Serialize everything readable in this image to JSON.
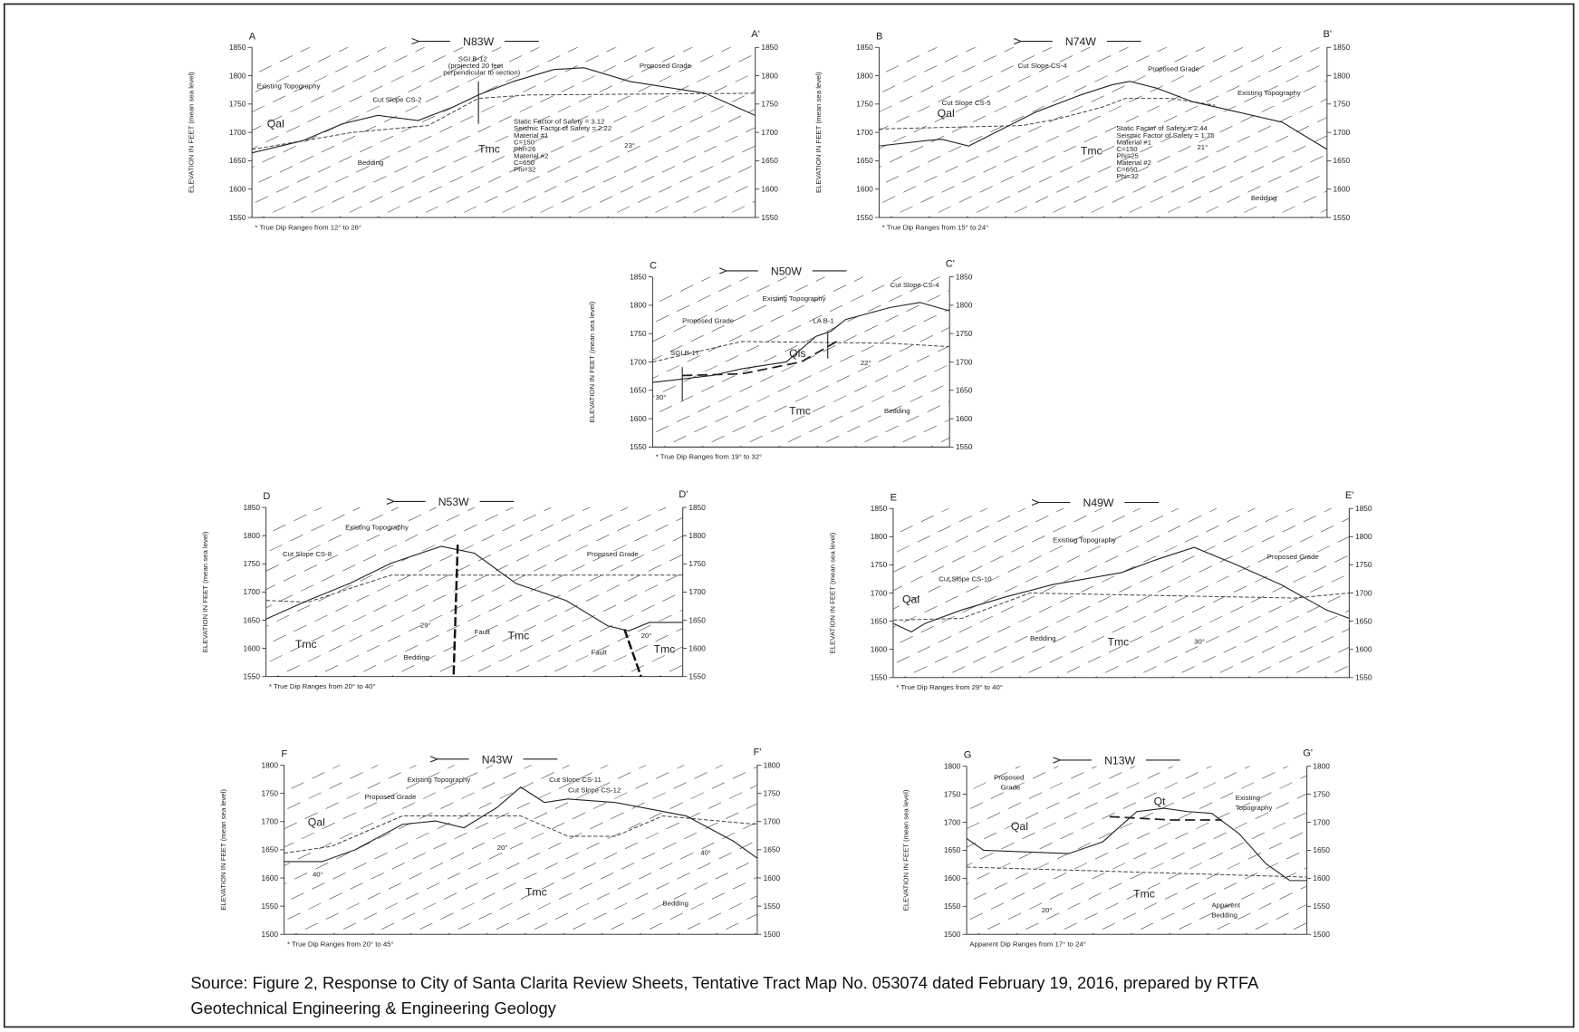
{
  "sections": [
    {
      "start": "A",
      "end": "A'",
      "direction": "N83W",
      "y_axis_label": "ELEVATION IN FEET (mean sea level)",
      "ticks": [
        1850,
        1800,
        1750,
        1700,
        1650,
        1600,
        1550
      ],
      "notes": [
        "Existing Topography",
        "Qal",
        "Cut Slope CS-2",
        "SGI B-12",
        "(projected 20 feet",
        "perpendicular to section)",
        "Proposed Grade",
        "Static Factor of Safety = 3.12",
        "Seismic Factor of Safety = 2.22",
        "Material #1",
        "C=150",
        "Phi=26",
        "Material #2",
        "C=650",
        "Phi=32",
        "Tmc",
        "Bedding",
        "23°"
      ],
      "footnote": "* True Dip Ranges from 12° to 26°"
    },
    {
      "start": "B",
      "end": "B'",
      "direction": "N74W",
      "y_axis_label": "ELEVATION IN FEET (mean sea level)",
      "ticks": [
        1850,
        1800,
        1750,
        1700,
        1650,
        1600,
        1550
      ],
      "notes": [
        "Cut Slope CS-4",
        "Proposed Grade",
        "Qal",
        "Cut Slope CS-5",
        "Existing Topography",
        "Static Factor of Safety = 2.44",
        "Seismic Factor of Safety = 1.75",
        "Material #1",
        "C=150",
        "Phi=25",
        "Material #2",
        "C=650",
        "Phi=32",
        "Tmc",
        "21°",
        "Bedding"
      ],
      "footnote": "* True Dip Ranges from 15° to 24°"
    },
    {
      "start": "C",
      "end": "C'",
      "direction": "N50W",
      "y_axis_label": "ELEVATION IN FEET (mean sea level)",
      "ticks": [
        1850,
        1800,
        1750,
        1700,
        1650,
        1600,
        1550
      ],
      "notes": [
        "Existing Topography",
        "Cut Slope CS-4",
        "Proposed Grade",
        "LA B-1",
        "SGI B-17",
        "Qls",
        "22°",
        "30°",
        "Tmc",
        "Bedding"
      ],
      "footnote": "* True Dip Ranges from 19° to 32°"
    },
    {
      "start": "D",
      "end": "D'",
      "direction": "N53W",
      "y_axis_label": "ELEVATION IN FEET (mean sea level)",
      "ticks": [
        1850,
        1800,
        1750,
        1700,
        1650,
        1600,
        1550
      ],
      "notes": [
        "Existing Topography",
        "Cut Slope CS-8",
        "Proposed Grade",
        "29°",
        "Fault",
        "Bedding",
        "Tmc",
        "Tmc",
        "20°",
        "Fault",
        "Tmc"
      ],
      "footnote": "* True Dip Ranges from 20° to 40°"
    },
    {
      "start": "E",
      "end": "E'",
      "direction": "N49W",
      "y_axis_label": "ELEVATION IN FEET (mean sea level)",
      "ticks": [
        1850,
        1800,
        1750,
        1700,
        1650,
        1600,
        1550
      ],
      "notes": [
        "Existing Topography",
        "Proposed Grade",
        "Cut Slope CS-10",
        "Qal",
        "Bedding",
        "Tmc",
        "30°"
      ],
      "footnote": "* True Dip Ranges from 29° to 40°"
    },
    {
      "start": "F",
      "end": "F'",
      "direction": "N43W",
      "y_axis_label": "ELEVATION IN FEET (mean sea level)",
      "ticks": [
        1800,
        1750,
        1700,
        1650,
        1600,
        1550,
        1500
      ],
      "notes": [
        "Existing Topography",
        "Cut Slope CS-11",
        "Cut Slope CS-12",
        "Proposed Grade",
        "Qal",
        "20°",
        "40°",
        "40°",
        "Tmc",
        "Bedding"
      ],
      "footnote": "* True Dip Ranges from 20° to 45°"
    },
    {
      "start": "G",
      "end": "G'",
      "direction": "N13W",
      "y_axis_label": "ELEVATION IN FEET (mean sea level)",
      "ticks": [
        1800,
        1750,
        1700,
        1650,
        1600,
        1550,
        1500
      ],
      "notes": [
        "Proposed",
        "Grade",
        "Qt",
        "Existing",
        "Topography",
        "Qal",
        "Tmc",
        "20°",
        "Apparent",
        "Bedding"
      ],
      "footnote": "Apparent Dip Ranges from 17° to 24°"
    }
  ],
  "caption": [
    "Source: Figure 2, Response to City of Santa Clarita Review Sheets, Tentative Tract Map No. 053074 dated February 19, 2016, prepared by RTFA",
    "Geotechnical Engineering & Engineering Geology"
  ]
}
